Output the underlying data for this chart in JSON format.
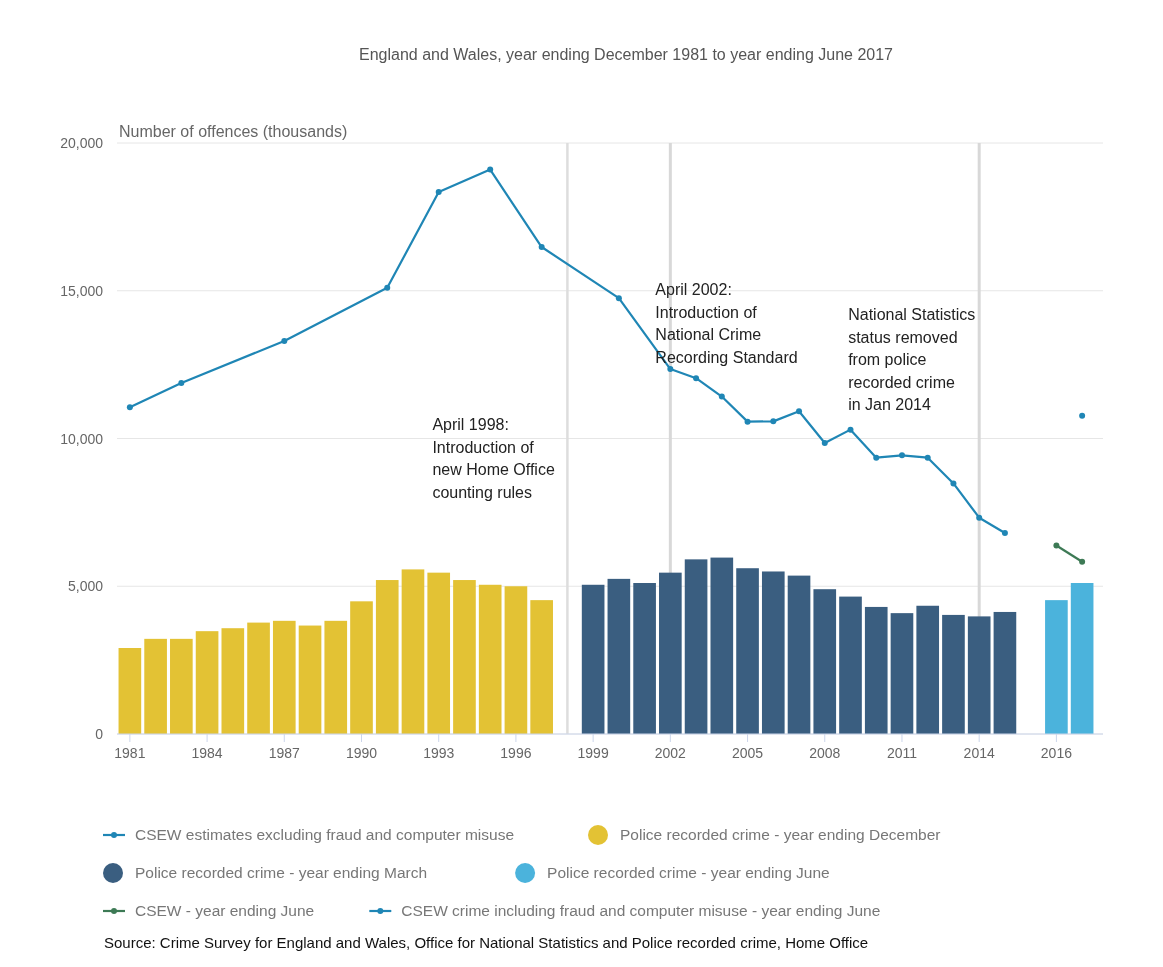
{
  "chart_data": {
    "type": "bar",
    "title": "England and Wales, year ending December 1981 to year ending June 2017",
    "ylabel": "Number of offences (thousands)",
    "categories": [
      "1981",
      null,
      null,
      "1984",
      null,
      null,
      "1987",
      null,
      null,
      "1990",
      null,
      null,
      "1993",
      null,
      null,
      "1996",
      null,
      null,
      "1999",
      null,
      null,
      "2002",
      null,
      null,
      "2005",
      null,
      null,
      "2008",
      null,
      null,
      "2011",
      null,
      null,
      "2014",
      null,
      null,
      "2016",
      null
    ],
    "series": [
      {
        "name": "CSEW estimates excluding fraud and computer misuse",
        "type": "line",
        "color": "#1f86b5",
        "values": [
          11060,
          null,
          11880,
          null,
          null,
          null,
          13300,
          null,
          null,
          null,
          15100,
          null,
          18340,
          null,
          19100,
          null,
          16480,
          null,
          null,
          14750,
          null,
          12350,
          12040,
          11420,
          10570,
          10580,
          10920,
          9850,
          10300,
          9350,
          9430,
          9350,
          8480,
          7320,
          6800,
          null,
          null,
          null
        ]
      },
      {
        "name": "Police recorded crime - year ending December",
        "color": "#e3c234",
        "values": [
          2910,
          3220,
          3220,
          3480,
          3580,
          3770,
          3830,
          3670,
          3830,
          4490,
          5210,
          5570,
          5460,
          5210,
          5050,
          5000,
          4530,
          null,
          null,
          null,
          null,
          null,
          null,
          null,
          null,
          null,
          null,
          null,
          null,
          null,
          null,
          null,
          null,
          null,
          null,
          null,
          null,
          null
        ]
      },
      {
        "name": "Police recorded crime - year ending March",
        "color": "#3a5e80",
        "values": [
          null,
          null,
          null,
          null,
          null,
          null,
          null,
          null,
          null,
          null,
          null,
          null,
          null,
          null,
          null,
          null,
          null,
          null,
          5050,
          5250,
          5110,
          5460,
          5910,
          5970,
          5610,
          5500,
          5360,
          4900,
          4650,
          4300,
          4090,
          4340,
          4030,
          3980,
          4130,
          null,
          null,
          null
        ]
      },
      {
        "name": "Police recorded crime - year ending June",
        "color": "#4bb3dc",
        "values": [
          null,
          null,
          null,
          null,
          null,
          null,
          null,
          null,
          null,
          null,
          null,
          null,
          null,
          null,
          null,
          null,
          null,
          null,
          null,
          null,
          null,
          null,
          null,
          null,
          null,
          null,
          null,
          null,
          null,
          null,
          null,
          null,
          null,
          null,
          null,
          null,
          4530,
          5110
        ]
      },
      {
        "name": "CSEW - year ending June",
        "type": "line",
        "color": "#3d7a55",
        "values": [
          null,
          null,
          null,
          null,
          null,
          null,
          null,
          null,
          null,
          null,
          null,
          null,
          null,
          null,
          null,
          null,
          null,
          null,
          null,
          null,
          null,
          null,
          null,
          null,
          null,
          null,
          null,
          null,
          null,
          null,
          null,
          null,
          null,
          null,
          null,
          null,
          6380,
          5830
        ]
      },
      {
        "name": "CSEW crime including fraud and computer misuse - year ending June",
        "type": "line",
        "color": "#1f86b5",
        "values": [
          null,
          null,
          null,
          null,
          null,
          null,
          null,
          null,
          null,
          null,
          null,
          null,
          null,
          null,
          null,
          null,
          null,
          null,
          null,
          null,
          null,
          null,
          null,
          null,
          null,
          null,
          null,
          null,
          null,
          null,
          null,
          null,
          null,
          null,
          null,
          null,
          null,
          10770
        ]
      }
    ],
    "ylim": [
      0,
      20000
    ],
    "yticks": [
      {
        "value": 0,
        "label": "0"
      },
      {
        "value": 5000,
        "label": "5,000"
      },
      {
        "value": 10000,
        "label": "10,000"
      },
      {
        "value": 15000,
        "label": "15,000"
      },
      {
        "value": 20000,
        "label": "20,000"
      }
    ],
    "grid": "y",
    "marker": "circle",
    "legend": "bottom",
    "ref_lines": [
      {
        "axis": "x",
        "value": "2002",
        "label": "April 2002:\nIntroduction of\nNational Crime\nRecording Standard",
        "color": "#d8d8d8"
      },
      {
        "axis": "x",
        "value": "2014",
        "label": "National Statistics\nstatus removed\nfrom police\nrecorded crime\nin Jan 2014",
        "color": "#d8d8d8"
      }
    ],
    "annotations": [
      "April 1998:\nIntroduction of\nnew Home Office\ncounting rules",
      "Source: Crime Survey for England and Wales, Office for National Statistics and Police recorded crime, Home Office"
    ]
  }
}
